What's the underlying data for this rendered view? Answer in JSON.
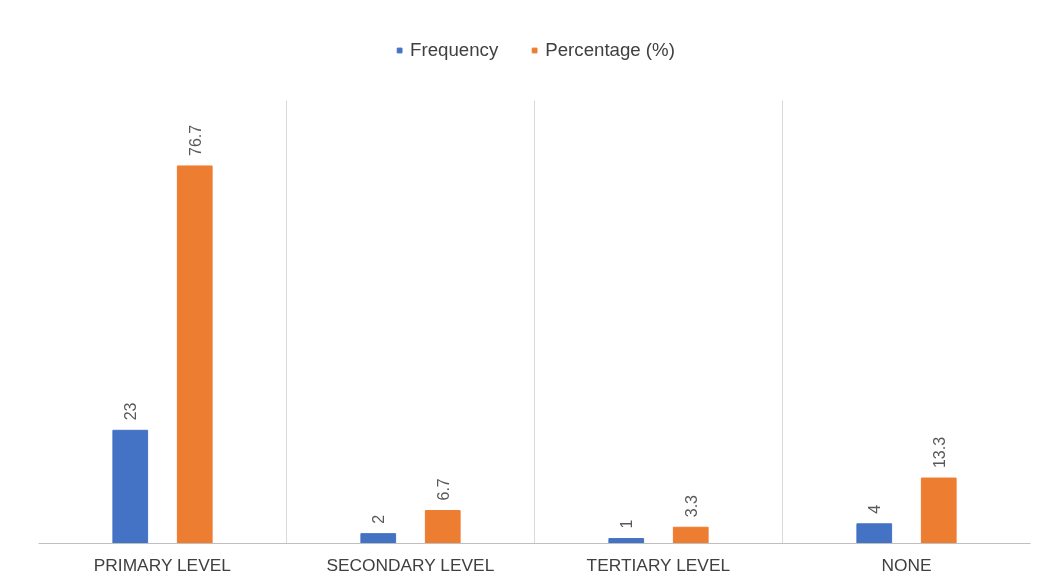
{
  "chart_data": {
    "type": "bar",
    "categories": [
      "PRIMARY LEVEL",
      "SECONDARY LEVEL",
      "TERTIARY LEVEL",
      "NONE"
    ],
    "series": [
      {
        "name": "Frequency",
        "color": "#4472c4",
        "values": [
          23,
          2,
          1,
          4
        ]
      },
      {
        "name": "Percentage (%)",
        "color": "#ed7d31",
        "values": [
          76.7,
          6.7,
          3.3,
          13.3
        ]
      }
    ],
    "ylim": [
      0,
      90
    ],
    "tick_labels": "x",
    "data_labels": true,
    "grid": "x",
    "legend": "top"
  }
}
